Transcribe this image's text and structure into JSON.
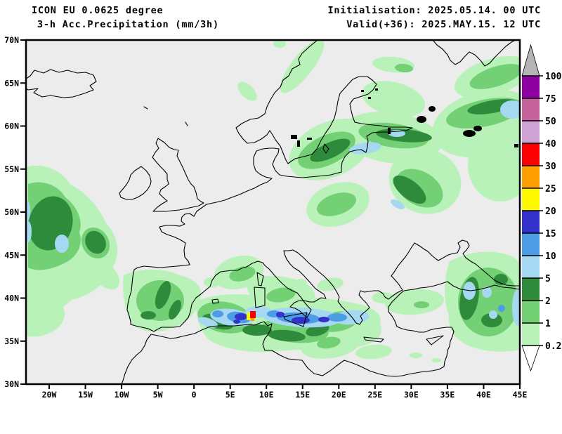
{
  "header": {
    "model": "ICON EU 0.0625 degree",
    "parameter": "3-h Acc.Precipitation (mm/3h)",
    "initialisation": "Initialisation: 2025.05.14. 00 UTC",
    "valid": "Valid(+36): 2025.MAY.15. 12 UTC"
  },
  "map": {
    "background": "#ececec",
    "coastline_color": "#000000",
    "lat_labels": [
      "70N",
      "65N",
      "60N",
      "55N",
      "50N",
      "45N",
      "40N",
      "35N",
      "30N"
    ],
    "lon_labels": [
      "20W",
      "15W",
      "10W",
      "5W",
      "0",
      "5E",
      "10E",
      "15E",
      "20E",
      "25E",
      "30E",
      "35E",
      "40E",
      "45E"
    ]
  },
  "colorbar": {
    "unit": "mm/3h",
    "tick_labels": [
      "100",
      "75",
      "50",
      "40",
      "30",
      "25",
      "20",
      "15",
      "10",
      "5",
      "2",
      "1",
      "0.2"
    ],
    "block_colors_top_to_bottom": [
      "#8f00a0",
      "#c4609a",
      "#cfa3d4",
      "#fa0000",
      "#ffa000",
      "#fdf800",
      "#3333cc",
      "#4d9ce6",
      "#a6d8f2",
      "#2e8b3c",
      "#74d074",
      "#b9f2b9"
    ],
    "overflow_color": "#b4b4b4",
    "underflow_color": "#ffffff"
  },
  "precip": {
    "palette": {
      "0.2": "#b9f2b9",
      "1": "#74d074",
      "2": "#2e8b3c",
      "5": "#a6d8f2",
      "10": "#4d9ce6",
      "15": "#3333cc",
      "20": "#fdf800",
      "25": "#ffa000",
      "30": "#fa0000"
    },
    "level_order": [
      "0.2",
      "1",
      "2",
      "5",
      "10",
      "15",
      "20",
      "25",
      "30"
    ],
    "regions": [
      [
        "0.2",
        "p",
        "M37 238 C62 230 90 244 100 263 C122 273 141 295 151 318 C168 336 173 362 159 383 C150 405 128 421 102 427 C83 445 58 455 37 457 Z"
      ],
      [
        "0.2",
        "p",
        "M37 418 C58 414 82 423 90 438 C97 455 84 471 63 477 C53 480 44 480 37 478 Z"
      ],
      [
        "0.2",
        "e",
        150,
        392,
        24,
        15,
        45
      ],
      [
        "0.2",
        "p",
        "M176 392 C200 380 236 382 256 392 C281 398 291 412 284 428 C279 448 263 462 241 468 C220 476 196 472 186 458 C177 440 173 414 176 392 Z"
      ],
      [
        "0.2",
        "e",
        340,
        388,
        36,
        23,
        -15
      ],
      [
        "0.2",
        "e",
        302,
        402,
        12,
        7,
        0
      ],
      [
        "0.2",
        "p",
        "M280 428 C320 414 360 418 396 428 C431 420 470 424 506 432 C531 436 546 448 541 462 C549 478 531 492 506 494 C471 500 431 496 396 500 C361 504 321 498 301 486 C285 476 277 448 280 428 Z"
      ],
      [
        "0.2",
        "p",
        "M350 398 C376 390 406 392 426 400 C446 406 453 420 445 432 C431 442 401 444 379 438 C361 432 349 414 350 398 Z"
      ],
      [
        "0.2",
        "e",
        470,
        405,
        19,
        9,
        -10
      ],
      [
        "0.2",
        "e",
        428,
        402,
        9,
        5,
        0
      ],
      [
        "0.2",
        "e",
        590,
        430,
        42,
        18,
        -5
      ],
      [
        "0.2",
        "e",
        545,
        424,
        16,
        8,
        0
      ],
      [
        "0.2",
        "e",
        470,
        492,
        42,
        18,
        -8
      ],
      [
        "0.2",
        "e",
        532,
        501,
        26,
        10,
        -5
      ],
      [
        "0.2",
        "e",
        592,
        506,
        9,
        4,
        0
      ],
      [
        "0.2",
        "e",
        621,
        513,
        7,
        3,
        0
      ],
      [
        "0.2",
        "e",
        430,
        94,
        47,
        15,
        -52
      ],
      [
        "0.2",
        "e",
        352,
        130,
        9,
        17,
        -45
      ],
      [
        "0.2",
        "e",
        398,
        62,
        9,
        6,
        0
      ],
      [
        "0.2",
        "e",
        560,
        92,
        30,
        11,
        5
      ],
      [
        "0.2",
        "e",
        470,
        213,
        62,
        39,
        -25
      ],
      [
        "0.2",
        "e",
        557,
        196,
        72,
        36,
        8
      ],
      [
        "0.2",
        "e",
        690,
        176,
        76,
        46,
        -14
      ],
      [
        "0.2",
        "e",
        712,
        235,
        46,
        52,
        0
      ],
      [
        "0.2",
        "e",
        605,
        258,
        52,
        46,
        20
      ],
      [
        "0.2",
        "e",
        481,
        291,
        46,
        30,
        -18
      ],
      [
        "0.2",
        "e",
        701,
        110,
        56,
        26,
        -18
      ],
      [
        "0.2",
        "e",
        560,
        141,
        46,
        24,
        14
      ],
      [
        "0.2",
        "p",
        "M640 372 C670 356 702 355 726 364 C740 369 743 381 740 393 L740 498 C716 503 689 501 669 493 C649 485 637 469 639 449 C631 429 631 397 640 372 Z"
      ],
      [
        "1",
        "p",
        "M40 262 C62 254 85 266 93 281 C109 293 119 313 113 331 C119 349 109 367 91 375 C72 385 52 387 40 381 Z"
      ],
      [
        "1",
        "e",
        228,
        428,
        34,
        29,
        0
      ],
      [
        "1",
        "e",
        345,
        390,
        19,
        10,
        -15
      ],
      [
        "1",
        "e",
        320,
        452,
        39,
        22,
        10
      ],
      [
        "1",
        "e",
        420,
        470,
        48,
        18,
        5
      ],
      [
        "1",
        "e",
        480,
        458,
        30,
        14,
        -10
      ],
      [
        "1",
        "e",
        400,
        420,
        21,
        10,
        -10
      ],
      [
        "1",
        "e",
        465,
        214,
        44,
        21,
        -25
      ],
      [
        "1",
        "e",
        560,
        193,
        50,
        17,
        8
      ],
      [
        "1",
        "e",
        597,
        268,
        36,
        24,
        30
      ],
      [
        "1",
        "e",
        690,
        161,
        56,
        19,
        -12
      ],
      [
        "1",
        "e",
        479,
        291,
        29,
        15,
        -18
      ],
      [
        "1",
        "e",
        706,
        109,
        39,
        14,
        -18
      ],
      [
        "1",
        "e",
        695,
        430,
        43,
        49,
        0
      ],
      [
        "1",
        "e",
        468,
        488,
        17,
        8,
        -10
      ],
      [
        "1",
        "e",
        575,
        97,
        13,
        6,
        5
      ],
      [
        "1",
        "e",
        136,
        346,
        19,
        23,
        -30
      ],
      [
        "1",
        "e",
        600,
        434,
        11,
        5,
        0
      ],
      [
        "2",
        "e",
        72,
        318,
        31,
        39,
        15
      ],
      [
        "2",
        "e",
        136,
        345,
        14,
        17,
        -30
      ],
      [
        "2",
        "e",
        232,
        420,
        9,
        21,
        20
      ],
      [
        "2",
        "e",
        249,
        441,
        7,
        15,
        25
      ],
      [
        "2",
        "e",
        211,
        449,
        11,
        6,
        0
      ],
      [
        "2",
        "e",
        310,
        458,
        23,
        10,
        15
      ],
      [
        "2",
        "e",
        408,
        478,
        27,
        8,
        5
      ],
      [
        "2",
        "e",
        452,
        470,
        17,
        8,
        -15
      ],
      [
        "2",
        "e",
        366,
        470,
        21,
        8,
        0
      ],
      [
        "2",
        "e",
        470,
        214,
        31,
        11,
        -25
      ],
      [
        "2",
        "e",
        575,
        193,
        40,
        9,
        5
      ],
      [
        "2",
        "e",
        583,
        270,
        28,
        13,
        38
      ],
      [
        "2",
        "e",
        701,
        152,
        36,
        9,
        -10
      ],
      [
        "2",
        "e",
        668,
        425,
        13,
        31,
        10
      ],
      [
        "2",
        "e",
        700,
        456,
        15,
        10,
        0
      ],
      [
        "2",
        "e",
        713,
        398,
        10,
        8,
        0
      ],
      [
        "5",
        "e",
        88,
        347,
        10,
        13,
        0
      ],
      [
        "5",
        "e",
        40,
        330,
        5,
        15,
        0
      ],
      [
        "5",
        "e",
        39,
        300,
        4,
        14,
        0
      ],
      [
        "5",
        "e",
        330,
        452,
        31,
        12,
        8
      ],
      [
        "5",
        "e",
        430,
        452,
        56,
        14,
        3
      ],
      [
        "5",
        "e",
        500,
        452,
        26,
        10,
        -5
      ],
      [
        "5",
        "e",
        368,
        444,
        19,
        8,
        0
      ],
      [
        "5",
        "e",
        296,
        459,
        15,
        6,
        20
      ],
      [
        "5",
        "e",
        520,
        211,
        23,
        8,
        -8
      ],
      [
        "5",
        "e",
        565,
        190,
        12,
        5,
        0
      ],
      [
        "5",
        "e",
        566,
        291,
        11,
        5,
        30
      ],
      [
        "5",
        "e",
        729,
        156,
        17,
        13,
        0
      ],
      [
        "5",
        "e",
        668,
        414,
        9,
        13,
        0
      ],
      [
        "5",
        "e",
        693,
        416,
        7,
        8,
        0
      ],
      [
        "5",
        "e",
        737,
        438,
        8,
        26,
        0
      ],
      [
        "5",
        "e",
        702,
        448,
        6,
        6,
        0
      ],
      [
        "10",
        "e",
        340,
        452,
        17,
        8,
        8
      ],
      [
        "10",
        "e",
        425,
        453,
        31,
        8,
        3
      ],
      [
        "10",
        "e",
        480,
        452,
        14,
        6,
        0
      ],
      [
        "10",
        "e",
        310,
        447,
        8,
        5,
        0
      ],
      [
        "10",
        "e",
        714,
        439,
        5,
        5,
        0
      ],
      [
        "10",
        "e",
        390,
        447,
        10,
        5,
        0
      ],
      [
        "15",
        "e",
        343,
        451,
        9,
        5,
        0
      ],
      [
        "15",
        "e",
        428,
        456,
        13,
        5,
        0
      ],
      [
        "15",
        "e",
        461,
        455,
        8,
        4,
        0
      ],
      [
        "15",
        "e",
        399,
        448,
        6,
        4,
        0
      ],
      [
        "15",
        "e",
        337,
        458,
        5,
        3,
        0
      ],
      [
        "20",
        "r",
        351,
        445,
        6,
        11
      ],
      [
        "25",
        "r",
        357,
        452,
        5,
        5
      ],
      [
        "30",
        "r",
        356,
        443,
        8,
        10
      ]
    ]
  }
}
